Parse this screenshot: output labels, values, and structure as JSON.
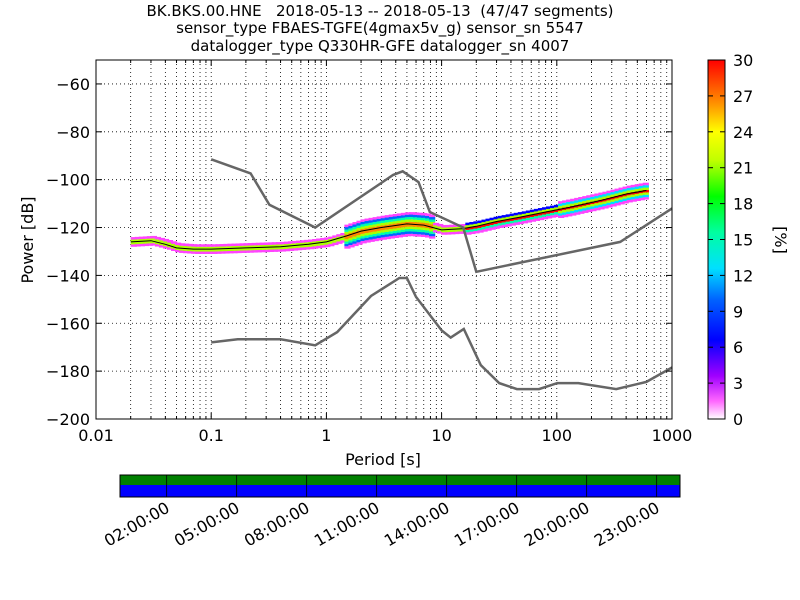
{
  "chart_data": [
    {
      "type": "heatmap",
      "title_lines": [
        "BK.BKS.00.HNE   2018-05-13 -- 2018-05-13  (47/47 segments)",
        "sensor_type FBAES-TGFE(4gmax5v_g) sensor_sn 5547",
        "datalogger_type Q330HR-GFE datalogger_sn 4007"
      ],
      "xlabel": "Period [s]",
      "ylabel": "Power [dB]",
      "xscale": "log",
      "xlim": [
        0.01,
        1000
      ],
      "ylim": [
        -200,
        -50
      ],
      "x_ticks": [
        0.01,
        0.1,
        1,
        10,
        100,
        1000
      ],
      "x_tick_labels": [
        "0.01",
        "0.1",
        "1",
        "10",
        "100",
        "1000"
      ],
      "y_ticks": [
        -200,
        -180,
        -160,
        -140,
        -120,
        -100,
        -80,
        -60
      ],
      "y_tick_labels": [
        "−200",
        "−180",
        "−160",
        "−140",
        "−120",
        "−100",
        "−80",
        "−60"
      ],
      "grid": true,
      "colorbar": {
        "label": "[%]",
        "range": [
          0,
          30
        ],
        "ticks": [
          "0",
          "3",
          "6",
          "9",
          "12",
          "15",
          "18",
          "21",
          "24",
          "27",
          "30"
        ]
      },
      "noise_model_high": [
        [
          0.1,
          -91.5
        ],
        [
          0.22,
          -97.4
        ],
        [
          0.32,
          -110.5
        ],
        [
          0.8,
          -120
        ],
        [
          3.8,
          -98
        ],
        [
          4.6,
          -96.5
        ],
        [
          6.3,
          -101
        ],
        [
          7.9,
          -113.5
        ],
        [
          15.4,
          -120
        ],
        [
          20,
          -138.5
        ],
        [
          354.8,
          -126
        ],
        [
          1000,
          -112
        ]
      ],
      "noise_model_low": [
        [
          0.1,
          -168
        ],
        [
          0.17,
          -166.7
        ],
        [
          0.4,
          -166.7
        ],
        [
          0.8,
          -169.2
        ],
        [
          1.24,
          -163.7
        ],
        [
          2.44,
          -148.6
        ],
        [
          4.3,
          -141.1
        ],
        [
          5,
          -141.1
        ],
        [
          6,
          -149
        ],
        [
          10,
          -163
        ],
        [
          12,
          -166
        ],
        [
          15.6,
          -162.4
        ],
        [
          21.9,
          -177.5
        ],
        [
          31.6,
          -185
        ],
        [
          45,
          -187.5
        ],
        [
          70,
          -187.5
        ],
        [
          101,
          -185
        ],
        [
          154,
          -185
        ],
        [
          328,
          -187.5
        ],
        [
          600,
          -184.5
        ],
        [
          1000,
          -178.5
        ]
      ],
      "psd_mode": [
        [
          0.02,
          -126
        ],
        [
          0.03,
          -125.5
        ],
        [
          0.04,
          -127
        ],
        [
          0.05,
          -128.5
        ],
        [
          0.07,
          -129
        ],
        [
          0.1,
          -129
        ],
        [
          0.2,
          -128.5
        ],
        [
          0.4,
          -128
        ],
        [
          0.7,
          -127
        ],
        [
          1,
          -126
        ],
        [
          1.5,
          -123.5
        ],
        [
          2,
          -121.5
        ],
        [
          3,
          -120
        ],
        [
          5,
          -118.5
        ],
        [
          7,
          -119
        ],
        [
          10,
          -121
        ],
        [
          15,
          -120.5
        ],
        [
          20,
          -119.5
        ],
        [
          30,
          -117.5
        ],
        [
          50,
          -115.5
        ],
        [
          80,
          -113.5
        ],
        [
          130,
          -111.5
        ],
        [
          250,
          -108.5
        ],
        [
          400,
          -106
        ],
        [
          600,
          -104.5
        ]
      ]
    },
    {
      "type": "timeline",
      "tick_labels": [
        "02:00:00",
        "05:00:00",
        "08:00:00",
        "11:00:00",
        "14:00:00",
        "17:00:00",
        "20:00:00",
        "23:00:00"
      ],
      "colors": {
        "data": "#0000ff",
        "coverage": "#008000"
      }
    }
  ]
}
